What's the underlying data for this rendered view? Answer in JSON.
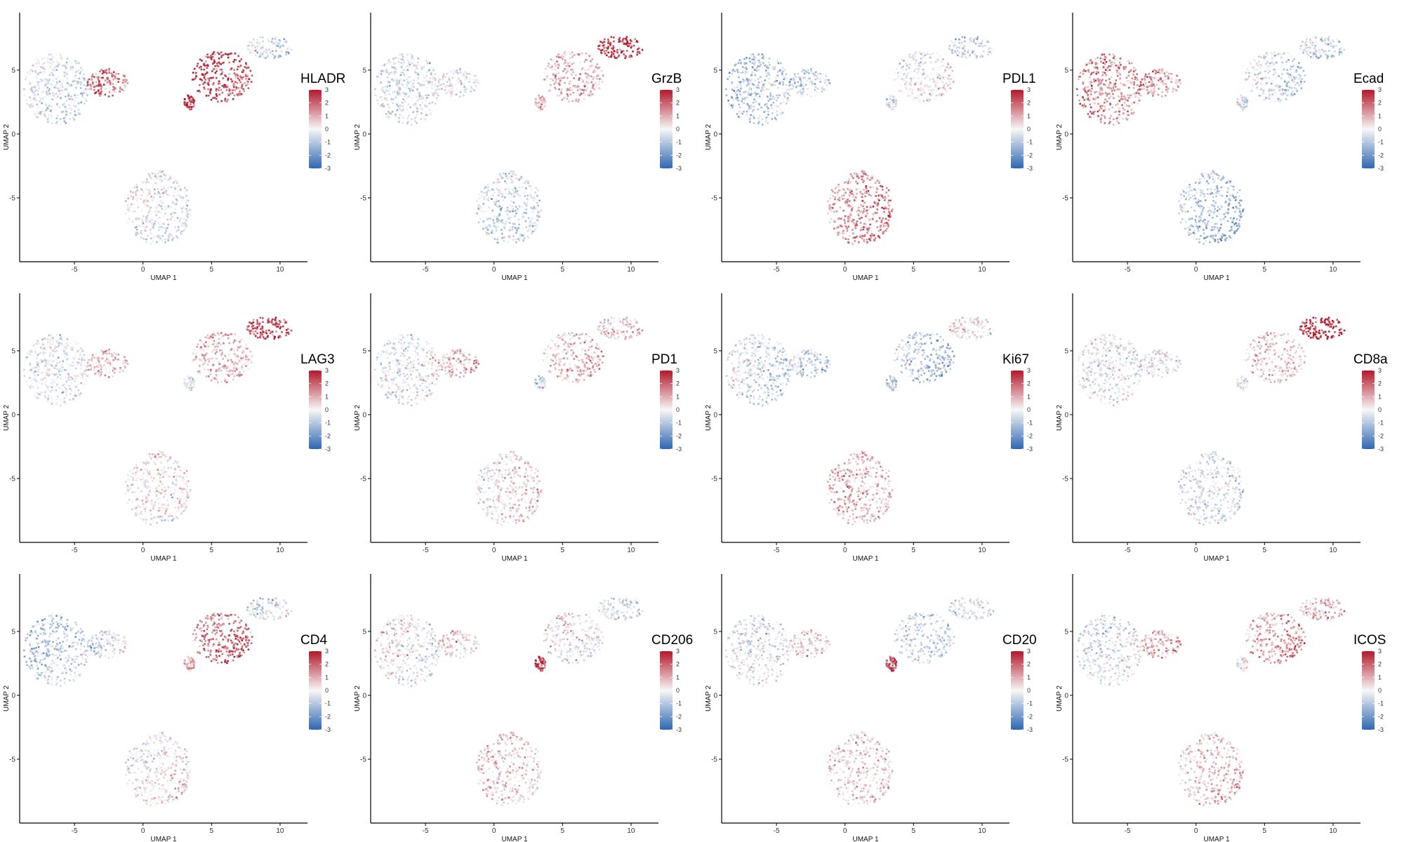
{
  "chart_data": {
    "type": "scatter",
    "layout": "grid",
    "rows": 3,
    "cols": 4,
    "xlabel": "UMAP 1",
    "ylabel": "UMAP 2",
    "xlim": [
      -9,
      12
    ],
    "ylim": [
      -10,
      9.5
    ],
    "xticks": [
      -5,
      0,
      5,
      10
    ],
    "yticks": [
      -5,
      0,
      5
    ],
    "color_scale": {
      "min": -3,
      "max": 3,
      "ticks": [
        3,
        2,
        1,
        0,
        -1,
        -2,
        -3
      ],
      "low_color": "#2f67b1",
      "mid_color": "#f7f7f7",
      "high_color": "#b2182b"
    },
    "clusters": [
      {
        "name": "left-blob",
        "cx": -6.3,
        "cy": 3.5,
        "rx": 2.4,
        "ry": 2.8
      },
      {
        "name": "mid-blob",
        "cx": -2.6,
        "cy": 4.0,
        "rx": 1.5,
        "ry": 1.1
      },
      {
        "name": "bottom-blob",
        "cx": 1.1,
        "cy": -5.8,
        "rx": 2.4,
        "ry": 2.9
      },
      {
        "name": "right-arm",
        "cx": 5.8,
        "cy": 4.5,
        "rx": 2.2,
        "ry": 2.0
      },
      {
        "name": "right-tip",
        "cx": 9.2,
        "cy": 6.8,
        "rx": 1.7,
        "ry": 0.9
      },
      {
        "name": "small-island",
        "cx": 3.4,
        "cy": 2.5,
        "rx": 0.4,
        "ry": 0.6
      }
    ],
    "panels": [
      {
        "marker": "HLADR",
        "cluster_expression": [
          -0.4,
          1.8,
          -0.2,
          2.2,
          -0.6,
          2.5
        ]
      },
      {
        "marker": "GrzB",
        "cluster_expression": [
          -0.4,
          -0.1,
          -0.6,
          0.9,
          2.4,
          0.8
        ]
      },
      {
        "marker": "PDL1",
        "cluster_expression": [
          -0.9,
          -0.7,
          1.4,
          0.0,
          -0.5,
          -0.3
        ]
      },
      {
        "marker": "Ecad",
        "cluster_expression": [
          1.4,
          1.2,
          -1.0,
          -0.6,
          -0.8,
          -0.5
        ]
      },
      {
        "marker": "LAG3",
        "cluster_expression": [
          -0.2,
          0.8,
          0.2,
          0.8,
          2.3,
          -0.4
        ]
      },
      {
        "marker": "PD1",
        "cluster_expression": [
          -0.2,
          1.0,
          0.3,
          0.7,
          0.6,
          -0.3
        ]
      },
      {
        "marker": "Ki67",
        "cluster_expression": [
          -0.6,
          -0.7,
          0.8,
          -0.9,
          0.2,
          -0.8
        ]
      },
      {
        "marker": "CD8a",
        "cluster_expression": [
          -0.2,
          0.0,
          -0.3,
          0.6,
          2.8,
          -0.3
        ]
      },
      {
        "marker": "CD4",
        "cluster_expression": [
          -0.9,
          -0.4,
          0.2,
          1.8,
          -0.4,
          1.0
        ]
      },
      {
        "marker": "CD206",
        "cluster_expression": [
          -0.1,
          0.4,
          0.5,
          0.1,
          -0.4,
          2.5
        ]
      },
      {
        "marker": "CD20",
        "cluster_expression": [
          -0.2,
          0.4,
          0.4,
          -0.6,
          -0.3,
          2.4
        ]
      },
      {
        "marker": "ICOS",
        "cluster_expression": [
          -0.3,
          1.0,
          0.6,
          1.2,
          0.9,
          0.0
        ]
      }
    ]
  }
}
